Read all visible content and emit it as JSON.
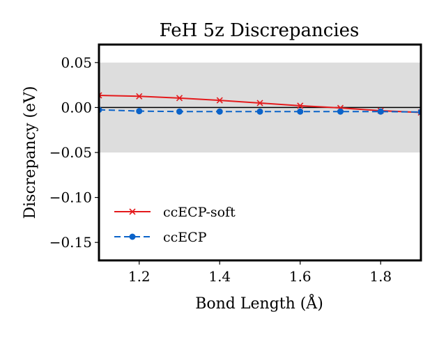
{
  "chart_data": {
    "type": "line",
    "title": "FeH 5z Discrepancies",
    "xlabel": "Bond Length (Å)",
    "ylabel": "Discrepancy (eV)",
    "xlim": [
      1.1,
      1.9
    ],
    "ylim": [
      -0.17,
      0.07
    ],
    "x_ticks": [
      1.2,
      1.4,
      1.6,
      1.8
    ],
    "x_tick_labels": [
      "1.2",
      "1.4",
      "1.6",
      "1.8"
    ],
    "y_ticks": [
      0.05,
      0.0,
      -0.05,
      -0.1,
      -0.15
    ],
    "y_tick_labels": [
      "0.05",
      "0.00",
      "−0.05",
      "−0.10",
      "−0.15"
    ],
    "grid": false,
    "legend_position": "lower-left",
    "shaded_band": {
      "y_min": -0.05,
      "y_max": 0.05,
      "color": "#dddddd"
    },
    "reference_line": {
      "y": 0.0,
      "color": "#000000"
    },
    "x": [
      1.1,
      1.2,
      1.3,
      1.4,
      1.5,
      1.6,
      1.7,
      1.8,
      1.9
    ],
    "series": [
      {
        "name": "ccECP-soft",
        "color": "#e41a1c",
        "marker": "x",
        "line_style": "solid",
        "values": [
          0.0135,
          0.0125,
          0.0105,
          0.008,
          0.005,
          0.002,
          -0.0005,
          -0.0035,
          -0.0055
        ]
      },
      {
        "name": "ccECP",
        "color": "#0b63c9",
        "marker": "circle",
        "line_style": "dashed",
        "values": [
          -0.0025,
          -0.004,
          -0.0045,
          -0.0045,
          -0.0045,
          -0.0045,
          -0.0045,
          -0.0045,
          -0.005
        ]
      }
    ]
  }
}
